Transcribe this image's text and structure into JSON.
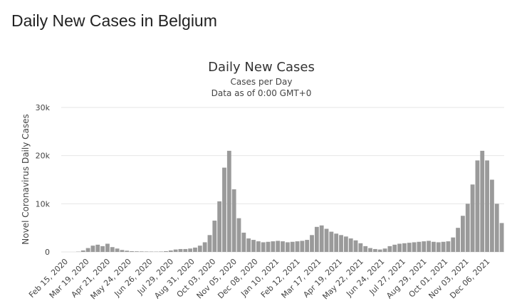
{
  "page": {
    "title": "Daily New Cases in Belgium"
  },
  "chart_data": {
    "type": "bar",
    "title": "Daily New Cases",
    "subtitle_lines": [
      "Cases per Day",
      "Data as of 0:00 GMT+0"
    ],
    "ylabel": "Novel Coronavirus Daily Cases",
    "xlabel": "",
    "ylim": [
      0,
      30000
    ],
    "y_ticks": [
      {
        "value": 0,
        "label": "0"
      },
      {
        "value": 10000,
        "label": "10k"
      },
      {
        "value": 20000,
        "label": "20k"
      },
      {
        "value": 30000,
        "label": "30k"
      }
    ],
    "x_tick_labels": [
      "Feb 15, 2020",
      "Mar 19, 2020",
      "Apr 21, 2020",
      "May 24, 2020",
      "Jun 26, 2020",
      "Jul 29, 2020",
      "Aug 31, 2020",
      "Oct 03, 2020",
      "Nov 05, 2020",
      "Dec 08, 2020",
      "Jan 10, 2021",
      "Feb 12, 2021",
      "Mar 17, 2021",
      "Apr 19, 2021",
      "May 22, 2021",
      "Jun 24, 2021",
      "Jul 27, 2021",
      "Aug 29, 2021",
      "Oct 01, 2021",
      "Nov 03, 2021",
      "Dec 06, 2021"
    ],
    "grid": true,
    "legend": "none",
    "bar_color": "#9a9a9a",
    "series": [
      {
        "values": [
          0,
          0,
          0,
          50,
          300,
          800,
          1300,
          1500,
          1200,
          1700,
          1000,
          700,
          400,
          250,
          150,
          120,
          100,
          80,
          70,
          60,
          80,
          150,
          300,
          500,
          600,
          600,
          700,
          900,
          1300,
          2000,
          3500,
          6500,
          10500,
          17500,
          21000,
          13000,
          7000,
          4000,
          2800,
          2500,
          2200,
          2000,
          2100,
          2200,
          2300,
          2200,
          2000,
          2100,
          2200,
          2300,
          2500,
          3500,
          5200,
          5500,
          4800,
          4200,
          3800,
          3500,
          3200,
          2800,
          2400,
          1800,
          1200,
          800,
          600,
          500,
          700,
          1200,
          1500,
          1700,
          1800,
          1900,
          2000,
          2100,
          2200,
          2300,
          2100,
          2000,
          2100,
          2200,
          3000,
          5000,
          7500,
          10000,
          14000,
          19000,
          21000,
          19000,
          15000,
          10000,
          6000
        ]
      }
    ]
  }
}
